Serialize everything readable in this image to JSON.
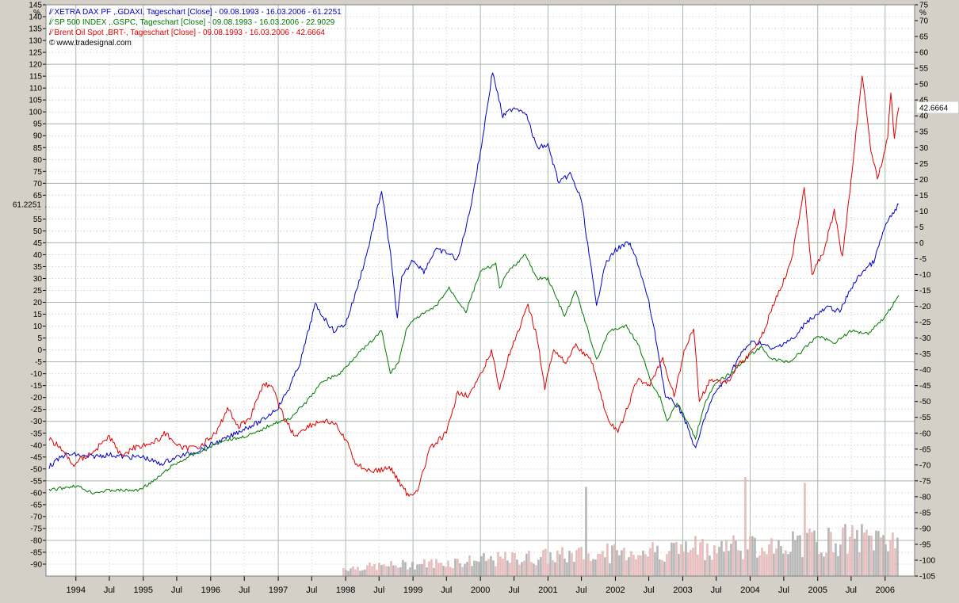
{
  "chart_data": {
    "type": "line",
    "y_unit_left": "%",
    "y_unit_right": "%",
    "x_range": [
      "1993-08-09",
      "2006-03-16"
    ],
    "x_ticks": [
      {
        "label": "1994",
        "date": "1994-01-01"
      },
      {
        "label": "Jul",
        "date": "1994-07-01"
      },
      {
        "label": "1995",
        "date": "1995-01-01"
      },
      {
        "label": "Jul",
        "date": "1995-07-01"
      },
      {
        "label": "1996",
        "date": "1996-01-01"
      },
      {
        "label": "Jul",
        "date": "1996-07-01"
      },
      {
        "label": "1997",
        "date": "1997-01-01"
      },
      {
        "label": "Jul",
        "date": "1997-07-01"
      },
      {
        "label": "1998",
        "date": "1998-01-01"
      },
      {
        "label": "Jul",
        "date": "1998-07-01"
      },
      {
        "label": "1999",
        "date": "1999-01-01"
      },
      {
        "label": "Jul",
        "date": "1999-07-01"
      },
      {
        "label": "2000",
        "date": "2000-01-01"
      },
      {
        "label": "Jul",
        "date": "2000-07-01"
      },
      {
        "label": "2001",
        "date": "2001-01-01"
      },
      {
        "label": "Jul",
        "date": "2001-07-01"
      },
      {
        "label": "2002",
        "date": "2002-01-01"
      },
      {
        "label": "Jul",
        "date": "2002-07-01"
      },
      {
        "label": "2003",
        "date": "2003-01-01"
      },
      {
        "label": "Jul",
        "date": "2003-07-01"
      },
      {
        "label": "2004",
        "date": "2004-01-01"
      },
      {
        "label": "Jul",
        "date": "2004-07-01"
      },
      {
        "label": "2005",
        "date": "2005-01-01"
      },
      {
        "label": "Jul",
        "date": "2005-07-01"
      },
      {
        "label": "2006",
        "date": "2006-01-01"
      }
    ],
    "left_axis": {
      "min": -95,
      "max": 145,
      "step": 5,
      "tick_min": -90,
      "tick_max": 145,
      "top_label": "%"
    },
    "right_axis": {
      "min": -105,
      "max": 75,
      "step": 5,
      "tick_min": -105,
      "tick_max": 75,
      "top_label": "%"
    },
    "left_marker": "61.2251",
    "right_marker": "42.6664",
    "watermark": "www.tradesignal.com",
    "colors": {
      "dax": "#0000c8",
      "sp500": "#007800",
      "brent": "#e00000",
      "volume": "#a8a8a8",
      "volume_fill": "#e2b0b0",
      "grid": "#a9b9a9",
      "background": "#ffffff"
    },
    "series": [
      {
        "name": "XETRA DAX PF ,.GDAXI, Tageschart [Close] - 09.08.1993 - 16.03.2006 - 61.2251",
        "color": "#0000c8",
        "axis": "left",
        "points": [
          [
            "1993-08-09",
            -49
          ],
          [
            "1993-11-01",
            -44
          ],
          [
            "1994-01-01",
            -44
          ],
          [
            "1994-03-01",
            -45
          ],
          [
            "1994-07-01",
            -44
          ],
          [
            "1994-10-01",
            -45
          ],
          [
            "1995-01-01",
            -45
          ],
          [
            "1995-04-01",
            -48
          ],
          [
            "1995-07-01",
            -45
          ],
          [
            "1995-10-01",
            -43
          ],
          [
            "1996-01-01",
            -40
          ],
          [
            "1996-04-01",
            -37
          ],
          [
            "1996-07-01",
            -33
          ],
          [
            "1996-10-01",
            -30
          ],
          [
            "1997-01-01",
            -24
          ],
          [
            "1997-03-01",
            -16
          ],
          [
            "1997-05-01",
            -5
          ],
          [
            "1997-07-20",
            19
          ],
          [
            "1997-09-01",
            14
          ],
          [
            "1997-10-28",
            8
          ],
          [
            "1998-01-01",
            11
          ],
          [
            "1998-03-01",
            25
          ],
          [
            "1998-05-01",
            42
          ],
          [
            "1998-07-15",
            67
          ],
          [
            "1998-09-01",
            40
          ],
          [
            "1998-10-08",
            13
          ],
          [
            "1998-11-01",
            30
          ],
          [
            "1999-01-01",
            38
          ],
          [
            "1999-03-01",
            33
          ],
          [
            "1999-05-01",
            42
          ],
          [
            "1999-07-01",
            41
          ],
          [
            "1999-09-01",
            38
          ],
          [
            "1999-11-01",
            57
          ],
          [
            "2000-01-01",
            83
          ],
          [
            "2000-03-07",
            117
          ],
          [
            "2000-05-01",
            98
          ],
          [
            "2000-07-01",
            102
          ],
          [
            "2000-09-01",
            100
          ],
          [
            "2000-11-01",
            85
          ],
          [
            "2001-01-01",
            86
          ],
          [
            "2001-03-01",
            70
          ],
          [
            "2001-05-01",
            74
          ],
          [
            "2001-07-01",
            63
          ],
          [
            "2001-09-21",
            18
          ],
          [
            "2001-11-01",
            35
          ],
          [
            "2002-01-01",
            42
          ],
          [
            "2002-03-15",
            45
          ],
          [
            "2002-05-01",
            37
          ],
          [
            "2002-07-01",
            20
          ],
          [
            "2002-08-15",
            2
          ],
          [
            "2002-09-30",
            -20
          ],
          [
            "2002-11-15",
            -22
          ],
          [
            "2003-01-01",
            -27
          ],
          [
            "2003-03-12",
            -42
          ],
          [
            "2003-05-01",
            -28
          ],
          [
            "2003-07-01",
            -17
          ],
          [
            "2003-09-01",
            -12
          ],
          [
            "2003-11-01",
            -3
          ],
          [
            "2004-01-01",
            3
          ],
          [
            "2004-03-01",
            3
          ],
          [
            "2004-05-01",
            0
          ],
          [
            "2004-07-01",
            3
          ],
          [
            "2004-09-01",
            5
          ],
          [
            "2004-11-01",
            12
          ],
          [
            "2005-01-01",
            15
          ],
          [
            "2005-03-01",
            18
          ],
          [
            "2005-05-01",
            16
          ],
          [
            "2005-07-01",
            26
          ],
          [
            "2005-09-01",
            33
          ],
          [
            "2005-11-01",
            37
          ],
          [
            "2006-01-01",
            52
          ],
          [
            "2006-03-16",
            61.2251
          ]
        ]
      },
      {
        "name": "SP 500 INDEX ,.GSPC, Tageschart [Close] - 09.08.1993 - 16.03.2006 - 22.9029",
        "color": "#007800",
        "axis": "left",
        "points": [
          [
            "1993-08-09",
            -59
          ],
          [
            "1994-01-01",
            -57
          ],
          [
            "1994-04-01",
            -60
          ],
          [
            "1994-07-01",
            -59
          ],
          [
            "1994-12-01",
            -59
          ],
          [
            "1995-03-01",
            -55
          ],
          [
            "1995-06-01",
            -49
          ],
          [
            "1995-09-01",
            -45
          ],
          [
            "1995-12-01",
            -42
          ],
          [
            "1996-03-01",
            -38
          ],
          [
            "1996-06-01",
            -37
          ],
          [
            "1996-09-01",
            -35
          ],
          [
            "1996-12-01",
            -31
          ],
          [
            "1997-03-01",
            -29
          ],
          [
            "1997-06-01",
            -22
          ],
          [
            "1997-09-01",
            -13
          ],
          [
            "1997-12-01",
            -10
          ],
          [
            "1998-03-01",
            -2
          ],
          [
            "1998-05-01",
            2
          ],
          [
            "1998-07-15",
            8
          ],
          [
            "1998-08-31",
            -10
          ],
          [
            "1998-10-15",
            -5
          ],
          [
            "1998-12-01",
            10
          ],
          [
            "1999-02-01",
            14
          ],
          [
            "1999-05-01",
            18
          ],
          [
            "1999-07-15",
            26
          ],
          [
            "1999-10-15",
            16
          ],
          [
            "2000-01-01",
            33
          ],
          [
            "2000-03-24",
            36
          ],
          [
            "2000-04-14",
            26
          ],
          [
            "2000-06-01",
            33
          ],
          [
            "2000-09-01",
            40
          ],
          [
            "2000-11-01",
            30
          ],
          [
            "2001-01-01",
            30
          ],
          [
            "2001-04-01",
            14
          ],
          [
            "2001-06-01",
            25
          ],
          [
            "2001-09-21",
            -4
          ],
          [
            "2001-12-01",
            8
          ],
          [
            "2002-03-01",
            10
          ],
          [
            "2002-05-01",
            3
          ],
          [
            "2002-07-23",
            -15
          ],
          [
            "2002-09-01",
            -20
          ],
          [
            "2002-10-09",
            -30
          ],
          [
            "2002-12-01",
            -22
          ],
          [
            "2003-03-11",
            -37
          ],
          [
            "2003-05-01",
            -22
          ],
          [
            "2003-07-01",
            -14
          ],
          [
            "2003-10-01",
            -9
          ],
          [
            "2004-01-01",
            -2
          ],
          [
            "2004-03-01",
            1
          ],
          [
            "2004-05-01",
            -4
          ],
          [
            "2004-08-01",
            -5
          ],
          [
            "2004-10-01",
            -1
          ],
          [
            "2005-01-01",
            6
          ],
          [
            "2005-04-01",
            3
          ],
          [
            "2005-07-01",
            8
          ],
          [
            "2005-10-01",
            7
          ],
          [
            "2006-01-01",
            14
          ],
          [
            "2006-03-16",
            22.9029
          ]
        ]
      },
      {
        "name": "Brent Oil Spot ,BRT-, Tageschart [Close] - 09.08.1993 - 16.03.2006 - 42.6664",
        "color": "#e00000",
        "axis": "right",
        "points": [
          [
            "1993-08-09",
            -62
          ],
          [
            "1993-10-01",
            -64
          ],
          [
            "1993-12-15",
            -70
          ],
          [
            "1994-02-01",
            -68
          ],
          [
            "1994-04-01",
            -66
          ],
          [
            "1994-07-01",
            -61
          ],
          [
            "1994-09-01",
            -67
          ],
          [
            "1994-12-01",
            -64
          ],
          [
            "1995-03-01",
            -63
          ],
          [
            "1995-05-01",
            -60
          ],
          [
            "1995-08-01",
            -65
          ],
          [
            "1995-11-01",
            -64
          ],
          [
            "1996-02-01",
            -60
          ],
          [
            "1996-04-01",
            -52
          ],
          [
            "1996-06-01",
            -58
          ],
          [
            "1996-08-01",
            -55
          ],
          [
            "1996-10-15",
            -44
          ],
          [
            "1996-12-01",
            -46
          ],
          [
            "1997-02-01",
            -55
          ],
          [
            "1997-04-01",
            -61
          ],
          [
            "1997-06-01",
            -58
          ],
          [
            "1997-09-01",
            -56
          ],
          [
            "1997-11-01",
            -57
          ],
          [
            "1998-01-01",
            -62
          ],
          [
            "1998-03-01",
            -70
          ],
          [
            "1998-06-01",
            -72
          ],
          [
            "1998-09-01",
            -71
          ],
          [
            "1998-12-10",
            -80
          ],
          [
            "1999-02-01",
            -77
          ],
          [
            "1999-04-01",
            -65
          ],
          [
            "1999-07-01",
            -60
          ],
          [
            "1999-09-01",
            -47
          ],
          [
            "1999-11-01",
            -48
          ],
          [
            "2000-01-01",
            -42
          ],
          [
            "2000-03-01",
            -34
          ],
          [
            "2000-04-15",
            -46
          ],
          [
            "2000-06-01",
            -36
          ],
          [
            "2000-09-15",
            -20
          ],
          [
            "2000-11-01",
            -29
          ],
          [
            "2000-12-15",
            -46
          ],
          [
            "2001-02-01",
            -33
          ],
          [
            "2001-04-01",
            -38
          ],
          [
            "2001-06-01",
            -32
          ],
          [
            "2001-09-01",
            -38
          ],
          [
            "2001-11-15",
            -55
          ],
          [
            "2002-01-15",
            -60
          ],
          [
            "2002-03-01",
            -53
          ],
          [
            "2002-05-01",
            -43
          ],
          [
            "2002-07-01",
            -45
          ],
          [
            "2002-09-15",
            -37
          ],
          [
            "2002-11-15",
            -48
          ],
          [
            "2003-01-15",
            -33
          ],
          [
            "2003-03-01",
            -27
          ],
          [
            "2003-04-01",
            -50
          ],
          [
            "2003-06-01",
            -43
          ],
          [
            "2003-09-01",
            -44
          ],
          [
            "2003-11-01",
            -38
          ],
          [
            "2004-01-01",
            -35
          ],
          [
            "2004-03-01",
            -30
          ],
          [
            "2004-05-15",
            -18
          ],
          [
            "2004-07-01",
            -12
          ],
          [
            "2004-08-20",
            -3
          ],
          [
            "2004-10-20",
            18
          ],
          [
            "2004-12-01",
            -10
          ],
          [
            "2005-02-01",
            -3
          ],
          [
            "2005-04-01",
            10
          ],
          [
            "2005-05-15",
            -5
          ],
          [
            "2005-07-01",
            20
          ],
          [
            "2005-08-30",
            53
          ],
          [
            "2005-10-15",
            30
          ],
          [
            "2005-11-20",
            20
          ],
          [
            "2006-01-15",
            33
          ],
          [
            "2006-02-01",
            48
          ],
          [
            "2006-02-20",
            33
          ],
          [
            "2006-03-16",
            42.6664
          ]
        ]
      }
    ],
    "volume_note": "unlabeled grey volume bars along the bottom of the plot (1998 onward)"
  }
}
